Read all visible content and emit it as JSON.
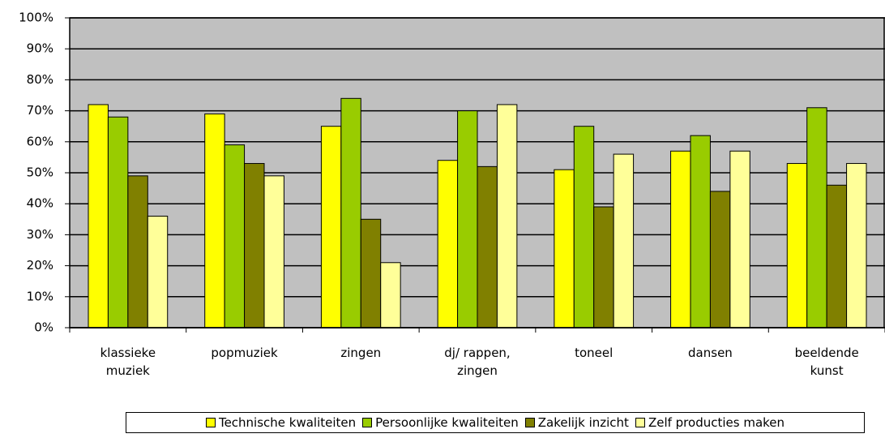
{
  "chart_data": {
    "type": "bar",
    "categories": [
      "klassieke muziek",
      "popmuziek",
      "zingen",
      "dj/ rappen, zingen",
      "toneel",
      "dansen",
      "beeldende kunst"
    ],
    "series": [
      {
        "name": "Technische kwaliteiten",
        "color": "#ffff00",
        "values": [
          72,
          69,
          65,
          54,
          51,
          57,
          53
        ]
      },
      {
        "name": "Persoonlijke kwaliteiten",
        "color": "#99cc00",
        "values": [
          68,
          59,
          74,
          70,
          65,
          62,
          71
        ]
      },
      {
        "name": "Zakelijk inzicht",
        "color": "#808000",
        "values": [
          49,
          53,
          35,
          52,
          39,
          44,
          46
        ]
      },
      {
        "name": "Zelf producties maken",
        "color": "#ffff99",
        "values": [
          36,
          49,
          21,
          72,
          56,
          57,
          53
        ]
      }
    ],
    "ylim": [
      0,
      100
    ],
    "yticks": [
      {
        "value": 0,
        "label": "0%"
      },
      {
        "value": 10,
        "label": "10%"
      },
      {
        "value": 20,
        "label": "20%"
      },
      {
        "value": 30,
        "label": "30%"
      },
      {
        "value": 40,
        "label": "40%"
      },
      {
        "value": 50,
        "label": "50%"
      },
      {
        "value": 60,
        "label": "60%"
      },
      {
        "value": 70,
        "label": "70%"
      },
      {
        "value": 80,
        "label": "80%"
      },
      {
        "value": 90,
        "label": "90%"
      },
      {
        "value": 100,
        "label": "100%"
      }
    ],
    "grid": true,
    "legend": "bottom",
    "plot_background": "#c0c0c0"
  }
}
